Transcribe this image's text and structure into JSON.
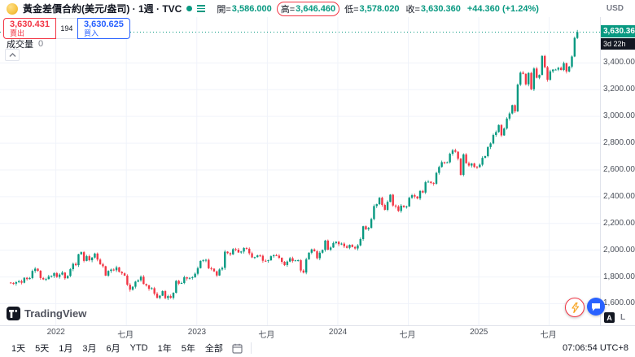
{
  "header": {
    "symbol_title": "黃金差價合約(美元/盎司) · 1週 · TVC",
    "stats": {
      "open_label": "開=",
      "open": "3,586.000",
      "high_label": "高=",
      "high": "3,646.460",
      "low_label": "低=",
      "low": "3,578.020",
      "close_label": "收=",
      "close": "3,630.360",
      "change": "+44.360 (+1.24%)"
    },
    "currency": "USD"
  },
  "trade_panel": {
    "sell_price": "3,630.431",
    "sell_label": "賣出",
    "spread": "194",
    "buy_price": "3,630.625",
    "buy_label": "買入"
  },
  "legend": {
    "volume_label": "成交量",
    "volume_value": "0"
  },
  "price_scale": {
    "badge": "3,630.360",
    "countdown": "3d 22h",
    "auto_label": "A",
    "log_label": "L"
  },
  "footer": {
    "ranges": [
      "1天",
      "5天",
      "1月",
      "3月",
      "6月",
      "YTD",
      "1年",
      "5年",
      "全部"
    ],
    "clock": "07:06:54 UTC+8"
  },
  "watermark": "TradingView",
  "colors": {
    "up": "#089981",
    "down": "#f23645",
    "sell": "#f23645",
    "buy": "#2962ff"
  },
  "chart_data": {
    "type": "candlestick",
    "title": "黃金差價合約(美元/盎司) 1週 TVC",
    "interval": "1W",
    "ylabel": "USD",
    "ylim": [
      1530,
      3700
    ],
    "y_ticks": [
      3400,
      3200,
      3000,
      2800,
      2600,
      2400,
      2200,
      2000,
      1800,
      1600
    ],
    "x_ticks": [
      {
        "label": "2022",
        "index": 17
      },
      {
        "label": "七月",
        "index": 43
      },
      {
        "label": "2023",
        "index": 69
      },
      {
        "label": "七月",
        "index": 95
      },
      {
        "label": "2024",
        "index": 121
      },
      {
        "label": "七月",
        "index": 147
      },
      {
        "label": "2025",
        "index": 173
      },
      {
        "label": "七月",
        "index": 199
      }
    ],
    "first_open": 1758,
    "closes": [
      1755,
      1750,
      1761,
      1768,
      1757,
      1794,
      1784,
      1792,
      1845,
      1862,
      1846,
      1792,
      1782,
      1784,
      1804,
      1808,
      1829,
      1800,
      1818,
      1833,
      1790,
      1808,
      1858,
      1898,
      1888,
      1970,
      1985,
      1920,
      1955,
      1925,
      1945,
      1975,
      1930,
      1895,
      1880,
      1810,
      1845,
      1855,
      1850,
      1872,
      1838,
      1827,
      1810,
      1742,
      1705,
      1727,
      1765,
      1775,
      1802,
      1747,
      1737,
      1712,
      1716,
      1675,
      1644,
      1660,
      1694,
      1642,
      1657,
      1644,
      1682,
      1771,
      1750,
      1755,
      1798,
      1788,
      1793,
      1798,
      1824,
      1866,
      1920,
      1926,
      1928,
      1865,
      1862,
      1842,
      1811,
      1856,
      1868,
      1989,
      1978,
      1969,
      2008,
      2004,
      1983,
      1990,
      2016,
      2011,
      1977,
      1946,
      1948,
      1961,
      1958,
      1921,
      1919,
      1925,
      1955,
      1962,
      1959,
      1943,
      1913,
      1889,
      1915,
      1940,
      1919,
      1924,
      1925,
      1848,
      1833,
      1932,
      1981,
      2006,
      1992,
      1940,
      1981,
      2002,
      2072,
      2004,
      2020,
      2053,
      2063,
      2045,
      2049,
      2029,
      2018,
      2040,
      2024,
      2013,
      2036,
      2083,
      2179,
      2156,
      2166,
      2233,
      2330,
      2344,
      2392,
      2338,
      2302,
      2361,
      2415,
      2334,
      2327,
      2293,
      2333,
      2322,
      2327,
      2392,
      2411,
      2401,
      2387,
      2443,
      2431,
      2508,
      2512,
      2503,
      2497,
      2578,
      2622,
      2658,
      2653,
      2657,
      2721,
      2747,
      2736,
      2684,
      2563,
      2716,
      2650,
      2633,
      2648,
      2622,
      2621,
      2639,
      2690,
      2703,
      2771,
      2798,
      2861,
      2883,
      2936,
      2858,
      2910,
      2984,
      3022,
      3084,
      3038,
      3238,
      3327,
      3318,
      3240,
      3325,
      3203,
      3358,
      3289,
      3310,
      3452,
      3368,
      3274,
      3337,
      3350,
      3350,
      3363,
      3347,
      3398,
      3336,
      3372,
      3448,
      3587,
      3630.36
    ],
    "last_candle": {
      "open": 3586.0,
      "high": 3646.46,
      "low": 3578.02,
      "close": 3630.36,
      "change": "+44.360",
      "change_pct": "+1.24%"
    },
    "last_price": 3630.36,
    "grid": true,
    "legend_position": "none"
  }
}
